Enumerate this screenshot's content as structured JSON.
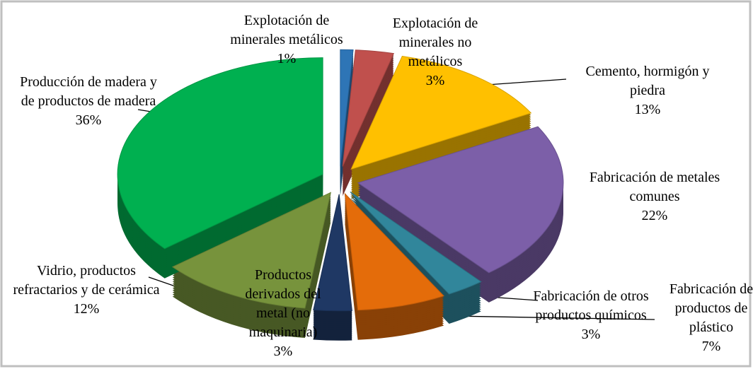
{
  "chart_data": {
    "type": "pie",
    "categories": [
      "Explotación de minerales metálicos",
      "Explotación de minerales no metálicos",
      "Cemento, hormigón y piedra",
      "Fabricación de metales comunes",
      "Fabricación de otros productos químicos",
      "Fabricación de productos de plástico",
      "Productos derivados del metal (no maquinaria)",
      "Vidrio, productos refractarios y de cerámica",
      "Producción de madera y de productos de madera"
    ],
    "values": [
      1,
      3,
      13,
      22,
      3,
      7,
      3,
      12,
      36
    ],
    "value_labels": [
      "1%",
      "3%",
      "13%",
      "22%",
      "3%",
      "7%",
      "3%",
      "12%",
      "36%"
    ],
    "colors": [
      "#2E75B6",
      "#C0504D",
      "#FFC000",
      "#7C5FA8",
      "#31869B",
      "#E46C0A",
      "#1F3864",
      "#77933C",
      "#00B050"
    ]
  }
}
